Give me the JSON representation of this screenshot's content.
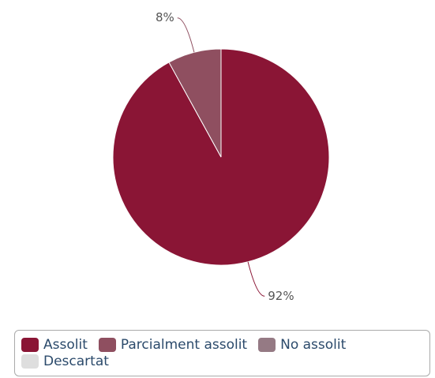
{
  "chart_data": {
    "type": "pie",
    "categories": [
      "Assolit",
      "Parcialment assolit",
      "No assolit",
      "Descartat"
    ],
    "values": [
      92,
      8,
      0,
      0
    ],
    "value_labels": [
      "92%",
      "8%",
      null,
      null
    ],
    "colors": [
      "#8a1535",
      "#8f4f60",
      "#957a84",
      "#dedede"
    ],
    "legend": "bottom"
  }
}
